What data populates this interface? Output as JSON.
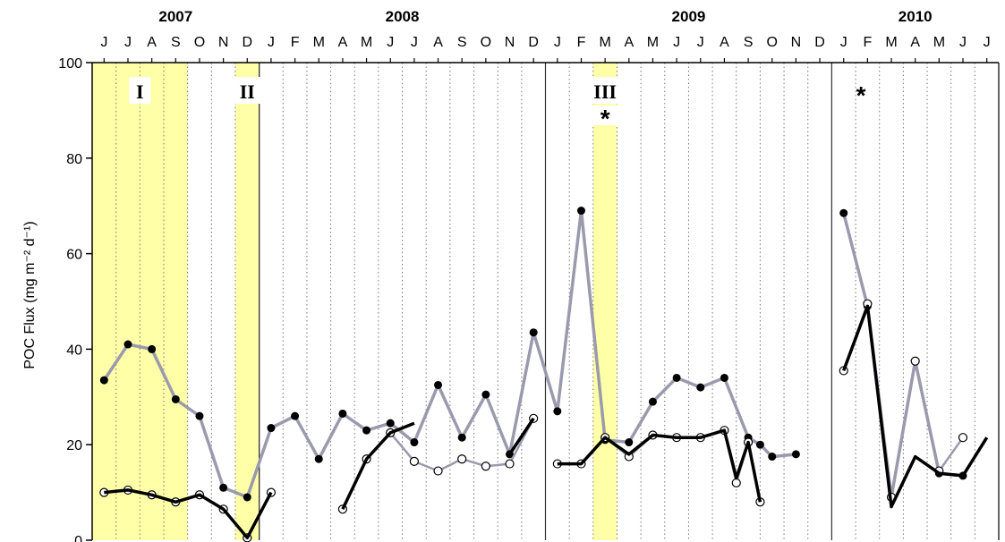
{
  "chart_data": {
    "type": "line",
    "years": [
      {
        "label": "2007",
        "start": 0,
        "end": 7
      },
      {
        "label": "2008",
        "start": 7,
        "end": 19
      },
      {
        "label": "2009",
        "start": 19,
        "end": 31
      },
      {
        "label": "2010",
        "start": 31,
        "end": 38
      }
    ],
    "months": [
      "J",
      "J",
      "A",
      "S",
      "O",
      "N",
      "D",
      "J",
      "F",
      "M",
      "A",
      "M",
      "J",
      "J",
      "A",
      "S",
      "O",
      "N",
      "D",
      "J",
      "F",
      "M",
      "A",
      "M",
      "J",
      "J",
      "A",
      "S",
      "O",
      "N",
      "D",
      "J",
      "F",
      "M",
      "A",
      "M",
      "J",
      "J"
    ],
    "ylabel": "POC Flux (mg m⁻² d⁻¹)",
    "ylim": [
      0,
      100
    ],
    "yticks": [
      0,
      20,
      40,
      60,
      80,
      100
    ],
    "highlight_periods": [
      {
        "label": "I",
        "start": 0,
        "end": 4
      },
      {
        "label": "II",
        "start": 6,
        "end": 7
      },
      {
        "label": "III",
        "start": 21,
        "end": 22,
        "marker": "*"
      }
    ],
    "annotations": [
      {
        "text": "*",
        "month": 32,
        "y": 94
      }
    ],
    "series": [
      {
        "style": "gray-filled",
        "x": [
          0.5,
          1.5,
          2.5,
          3.5,
          4.5,
          5.5,
          6.5,
          7.5,
          8.5,
          9.5,
          10.5,
          11.5,
          12.5,
          13.5,
          14.5,
          15.5,
          16.5,
          17.5,
          18.5,
          19.5,
          20.5,
          21.5,
          22.5,
          23.5,
          24.5,
          25.5,
          26.5,
          27.5,
          28.0,
          28.5,
          29.5,
          30.5,
          31.5,
          32.5,
          33.5,
          34.5,
          35.5,
          36.5,
          37.5
        ],
        "values": [
          33.5,
          41,
          40,
          29.5,
          26,
          11,
          9,
          23.5,
          26,
          17,
          26.5,
          23,
          24.5,
          20.5,
          32.5,
          21.5,
          30.5,
          18,
          43.5,
          27,
          69,
          21,
          20.5,
          29,
          34,
          32,
          34,
          21.5,
          20,
          17.5,
          18,
          null,
          null,
          null,
          null,
          null,
          null,
          null,
          null
        ]
      },
      {
        "style": "gray-filled",
        "x": [
          31.5,
          32.5,
          33.5,
          34.5,
          35.5,
          36.5
        ],
        "values": [
          68.5,
          49,
          9,
          37.5,
          14,
          13.5
        ]
      },
      {
        "style": "gray-open",
        "x": [
          0.5,
          1.5,
          2.5,
          3.5,
          4.5,
          5.5,
          6.5,
          7.5
        ],
        "values": [
          10,
          10.5,
          9.5,
          8,
          9.5,
          6.5,
          0.5,
          10
        ]
      },
      {
        "style": "gray-open",
        "x": [
          10.5,
          11.5,
          12.5,
          13.5,
          14.5,
          15.5,
          16.5,
          17.5,
          18.5
        ],
        "values": [
          6.5,
          17,
          22.5,
          16.5,
          14.5,
          17,
          15.5,
          16,
          25.5
        ]
      },
      {
        "style": "gray-open",
        "x": [
          19.5,
          20.5,
          21.5,
          22.5,
          23.5,
          24.5,
          25.5,
          26.5,
          27.0,
          27.5,
          28.0,
          29.0
        ],
        "values": [
          16,
          16,
          21.5,
          17.5,
          22,
          21.5,
          21.5,
          23,
          12,
          20.5,
          8,
          null
        ]
      },
      {
        "style": "gray-open",
        "x": [
          31.5,
          32.5,
          33.5,
          34.5,
          35.5,
          36.5
        ],
        "values": [
          35.5,
          49.5,
          9,
          37.5,
          14.5,
          21.5
        ]
      },
      {
        "style": "black",
        "x": [
          0.5,
          1.5,
          2.5,
          3.5,
          4.5,
          5.5,
          6.5,
          7.5
        ],
        "values": [
          10,
          10.5,
          9.5,
          8,
          9.5,
          6.5,
          0.5,
          10
        ]
      },
      {
        "style": "black-filled",
        "x": [
          10.5,
          11.5,
          12.5,
          13.5,
          14.5,
          15.5,
          16.5,
          17.5,
          18.5
        ],
        "values": [
          6.5,
          17,
          22.5,
          24.5,
          null,
          null,
          null,
          18,
          25.5
        ]
      },
      {
        "style": "black-filled",
        "x": [
          19.5,
          20.5,
          21.5,
          22.5,
          23.5,
          24.5,
          25.5,
          26.5,
          27.0,
          27.5,
          28.0
        ],
        "values": [
          16,
          16,
          21.5,
          18,
          22,
          21.5,
          21.5,
          23,
          13,
          20.5,
          8
        ]
      },
      {
        "style": "black-filled",
        "x": [
          31.5,
          32.5,
          33.5,
          34.5,
          35.5,
          36.5,
          37.5
        ],
        "values": [
          35.5,
          49,
          7,
          17.5,
          14,
          13.5,
          21.5
        ]
      }
    ]
  }
}
